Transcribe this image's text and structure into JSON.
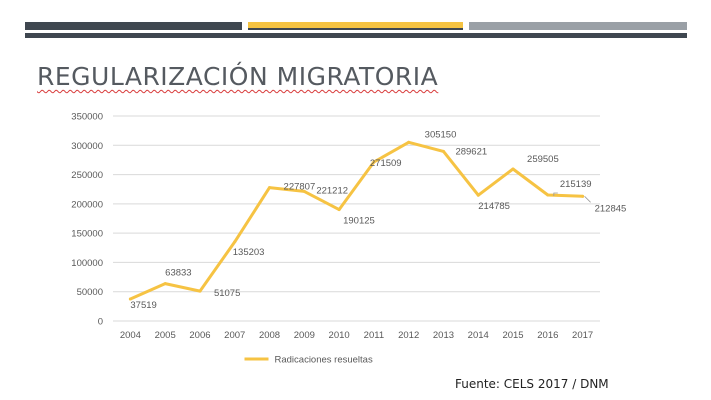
{
  "title": "REGULARIZACIÓN MIGRATORIA",
  "source": "Fuente: CELS 2017 / DNM",
  "colors": {
    "accent": "#f5c342",
    "dark": "#3f4750",
    "gray": "#9aa0a6",
    "line": "#f6c343"
  },
  "chart_data": {
    "type": "line",
    "categories": [
      "2004",
      "2005",
      "2006",
      "2007",
      "2008",
      "2009",
      "2010",
      "2011",
      "2012",
      "2013",
      "2014",
      "2015",
      "2016",
      "2017"
    ],
    "series": [
      {
        "name": "Radicaciones resueltas",
        "values": [
          37519,
          63833,
          51075,
          135203,
          227807,
          221212,
          190125,
          271509,
          305150,
          289621,
          214785,
          259505,
          215139,
          212845
        ]
      }
    ],
    "data_labels": [
      "37519",
      "63833",
      "51075",
      "135203",
      "227807",
      "221212",
      "190125",
      "271509",
      "305150",
      "289621",
      "214785",
      "259505",
      "215139",
      "212845"
    ],
    "y_ticks": [
      "0",
      "50000",
      "100000",
      "150000",
      "200000",
      "250000",
      "300000",
      "350000"
    ],
    "ylim": [
      0,
      350000
    ],
    "grid": true,
    "legend": "bottom"
  }
}
